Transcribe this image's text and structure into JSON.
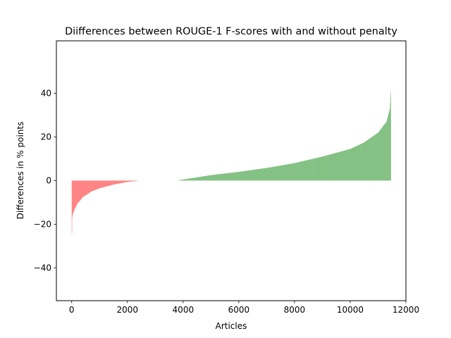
{
  "chart_data": {
    "type": "bar",
    "title": "Diifferences between ROUGE-1 F-scores with and without penalty",
    "xlabel": "Articles",
    "ylabel": "Differences in % points",
    "xlim": [
      -550,
      12000
    ],
    "ylim": [
      -55,
      64
    ],
    "xticks": [
      0,
      2000,
      4000,
      6000,
      8000,
      10000,
      12000
    ],
    "yticks": [
      -40,
      -20,
      0,
      20,
      40
    ],
    "grid": false,
    "legend": "none",
    "colors": {
      "negative": "#ff8080",
      "positive": "#80bf80"
    },
    "n_articles": 11450,
    "sorted_profile": {
      "description": "articles sorted ascending by difference",
      "points": [
        [
          0,
          -24
        ],
        [
          5,
          -17.5
        ],
        [
          30,
          -15.5
        ],
        [
          100,
          -13
        ],
        [
          200,
          -10.5
        ],
        [
          400,
          -7.5
        ],
        [
          700,
          -5
        ],
        [
          1000,
          -3.5
        ],
        [
          1500,
          -1.8
        ],
        [
          2000,
          -0.6
        ],
        [
          2350,
          -0.1
        ],
        [
          2400,
          0
        ],
        [
          3800,
          0
        ],
        [
          3850,
          0.2
        ],
        [
          4500,
          1.5
        ],
        [
          5000,
          2.5
        ],
        [
          6000,
          4
        ],
        [
          7000,
          5.8
        ],
        [
          8000,
          8
        ],
        [
          9000,
          11
        ],
        [
          10000,
          14.5
        ],
        [
          10500,
          17.5
        ],
        [
          11000,
          22
        ],
        [
          11300,
          27
        ],
        [
          11420,
          33
        ],
        [
          11450,
          40.5
        ]
      ]
    }
  }
}
